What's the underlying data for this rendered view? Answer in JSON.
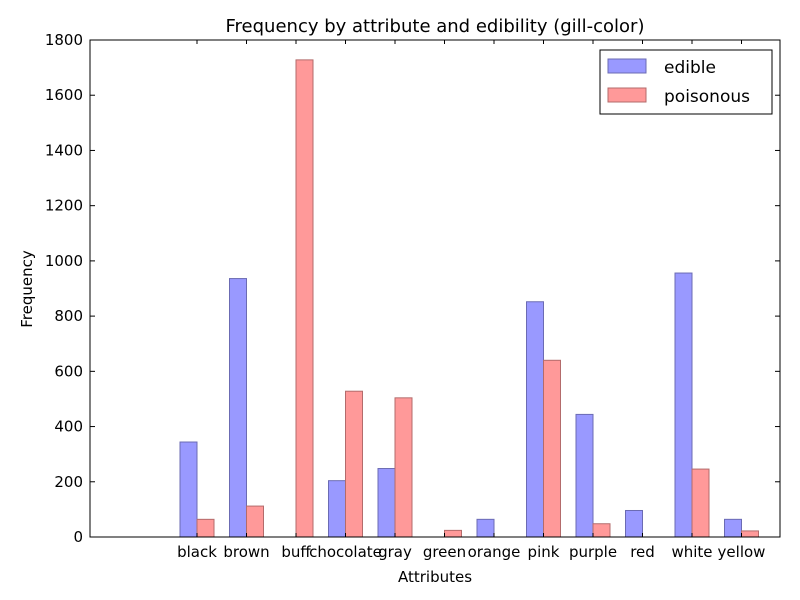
{
  "chart_data": {
    "type": "bar",
    "title": "Frequency by attribute and edibility (gill-color)",
    "xlabel": "Attributes",
    "ylabel": "Frequency",
    "ylim": [
      0,
      1800
    ],
    "yticks": [
      0,
      200,
      400,
      600,
      800,
      1000,
      1200,
      1400,
      1600,
      1800
    ],
    "categories": [
      "black",
      "brown",
      "buff",
      "chocolate",
      "gray",
      "green",
      "orange",
      "pink",
      "purple",
      "red",
      "white",
      "yellow"
    ],
    "series": [
      {
        "name": "edible",
        "color": "#9999ff",
        "values": [
          344,
          936,
          0,
          204,
          248,
          0,
          64,
          852,
          444,
          96,
          956,
          64
        ]
      },
      {
        "name": "poisonous",
        "color": "#ff9999",
        "values": [
          64,
          112,
          1728,
          528,
          504,
          24,
          0,
          640,
          48,
          0,
          246,
          22
        ]
      }
    ],
    "legend_position": "top-right",
    "grid": false
  }
}
